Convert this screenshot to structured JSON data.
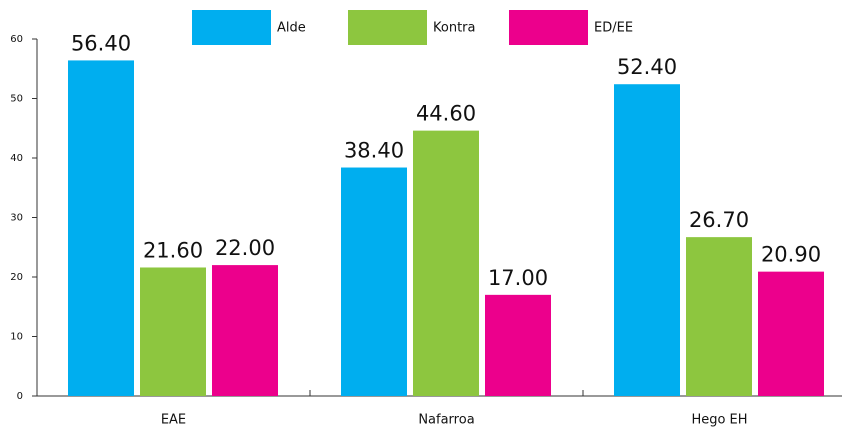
{
  "chart_data": {
    "type": "bar",
    "categories": [
      "EAE",
      "Nafarroa",
      "Hego EH"
    ],
    "series": [
      {
        "name": "Alde",
        "color": "#00aeef",
        "values": [
          56.4,
          38.4,
          52.4
        ],
        "value_labels": [
          "56.40",
          "38.40",
          "52.40"
        ]
      },
      {
        "name": "Kontra",
        "color": "#8dc63f",
        "values": [
          21.6,
          44.6,
          26.7
        ],
        "value_labels": [
          "21.60",
          "44.60",
          "26.70"
        ]
      },
      {
        "name": "ED/EE",
        "color": "#ec008c",
        "values": [
          22.0,
          17.0,
          20.9
        ],
        "value_labels": [
          "22.00",
          "17.00",
          "20.90"
        ]
      }
    ],
    "ylim": [
      0,
      60
    ],
    "yticks": [
      0,
      10,
      20,
      30,
      40,
      50,
      60
    ],
    "grid": false,
    "legend": "top"
  }
}
